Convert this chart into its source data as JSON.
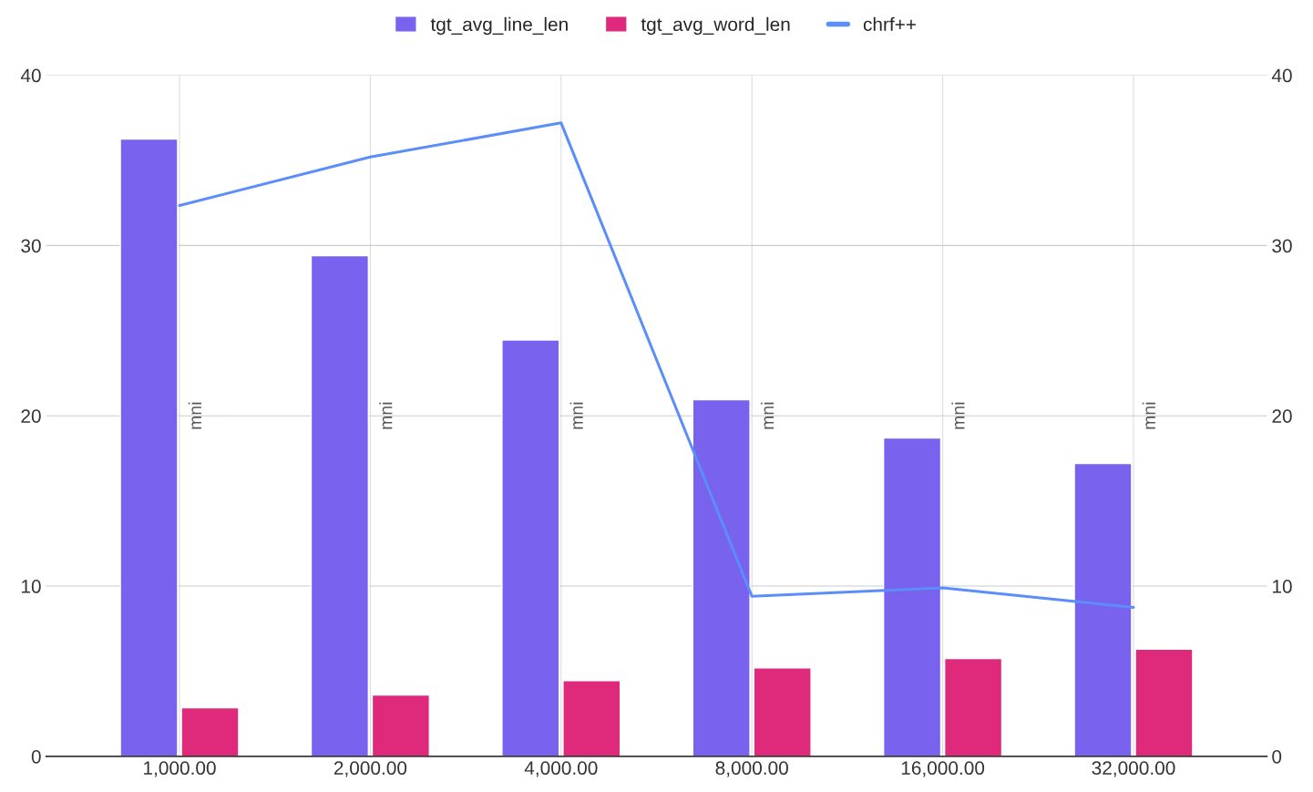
{
  "chart_data": {
    "type": "bar",
    "categories": [
      "1,000.00",
      "2,000.00",
      "4,000.00",
      "8,000.00",
      "16,000.00",
      "32,000.00"
    ],
    "series": [
      {
        "name": "tgt_avg_line_len",
        "color": "#7962ee",
        "values": [
          36.25,
          29.4,
          24.45,
          20.95,
          18.7,
          17.2
        ]
      },
      {
        "name": "tgt_avg_word_len",
        "color": "#df2a7c",
        "values": [
          2.85,
          3.6,
          4.45,
          5.2,
          5.75,
          6.3
        ]
      },
      {
        "name": "chrf++",
        "type": "line",
        "color": "#5b8ef8",
        "values": [
          32.35,
          35.2,
          37.2,
          9.4,
          9.9,
          8.75
        ]
      }
    ],
    "ylim": [
      0,
      40
    ],
    "yticks": [
      0,
      10,
      20,
      30,
      40
    ],
    "y2lim": [
      0,
      40
    ],
    "y2ticks": [
      0,
      10,
      20,
      30,
      40
    ],
    "grid": true,
    "legend": "top",
    "annotations": [
      "mni",
      "mni",
      "mni",
      "mni",
      "mni",
      "mni"
    ]
  }
}
